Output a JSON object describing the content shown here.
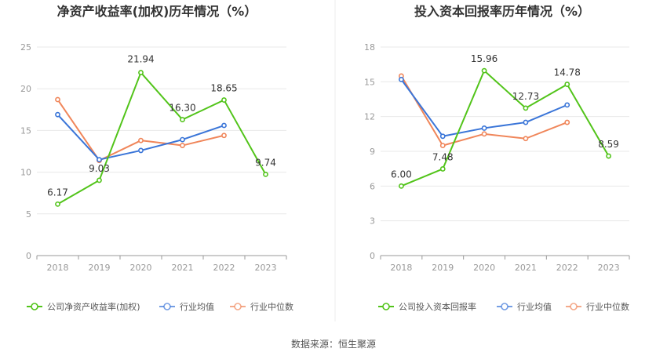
{
  "source": "数据来源：恒生聚源",
  "colors": {
    "company": "#52c41a",
    "avg": "#3a75d8",
    "median": "#f0865a",
    "grid": "#e8e8e8",
    "axis": "#999999"
  },
  "chart_data": [
    {
      "type": "line",
      "title": "净资产收益率(加权)历年情况（%）",
      "categories": [
        "2018",
        "2019",
        "2020",
        "2021",
        "2022",
        "2023"
      ],
      "ylim": [
        0,
        25
      ],
      "yticks": [
        0,
        5,
        10,
        15,
        20,
        25
      ],
      "ytick_labels": [
        "0",
        "5",
        "10",
        "15",
        "20",
        "25"
      ],
      "grid": true,
      "legend": "bottom",
      "series": [
        {
          "name": "公司净资产收益率(加权)",
          "color": "#52c41a",
          "values": [
            6.17,
            9.03,
            21.94,
            16.3,
            18.65,
            9.74
          ],
          "labels": [
            "6.17",
            "9.03",
            "21.94",
            "16.30",
            "18.65",
            "9.74"
          ]
        },
        {
          "name": "行业均值",
          "color": "#3a75d8",
          "values": [
            16.9,
            11.5,
            12.6,
            13.9,
            15.6,
            null
          ]
        },
        {
          "name": "行业中位数",
          "color": "#f0865a",
          "values": [
            18.7,
            11.4,
            13.8,
            13.2,
            14.4,
            null
          ]
        }
      ]
    },
    {
      "type": "line",
      "title": "投入资本回报率历年情况（%）",
      "categories": [
        "2018",
        "2019",
        "2020",
        "2021",
        "2022",
        "2023"
      ],
      "ylim": [
        0,
        18
      ],
      "yticks": [
        0,
        3,
        6,
        9,
        12,
        15,
        18
      ],
      "ytick_labels": [
        "0",
        "3",
        "6",
        "9",
        "12",
        "15",
        "18"
      ],
      "grid": true,
      "legend": "bottom",
      "series": [
        {
          "name": "公司投入资本回报率",
          "color": "#52c41a",
          "values": [
            6.0,
            7.48,
            15.96,
            12.73,
            14.78,
            8.59
          ],
          "labels": [
            "6.00",
            "7.48",
            "15.96",
            "12.73",
            "14.78",
            "8.59"
          ]
        },
        {
          "name": "行业均值",
          "color": "#3a75d8",
          "values": [
            15.2,
            10.3,
            11.0,
            11.5,
            13.0,
            null
          ]
        },
        {
          "name": "行业中位数",
          "color": "#f0865a",
          "values": [
            15.5,
            9.5,
            10.5,
            10.1,
            11.5,
            null
          ]
        }
      ]
    }
  ]
}
